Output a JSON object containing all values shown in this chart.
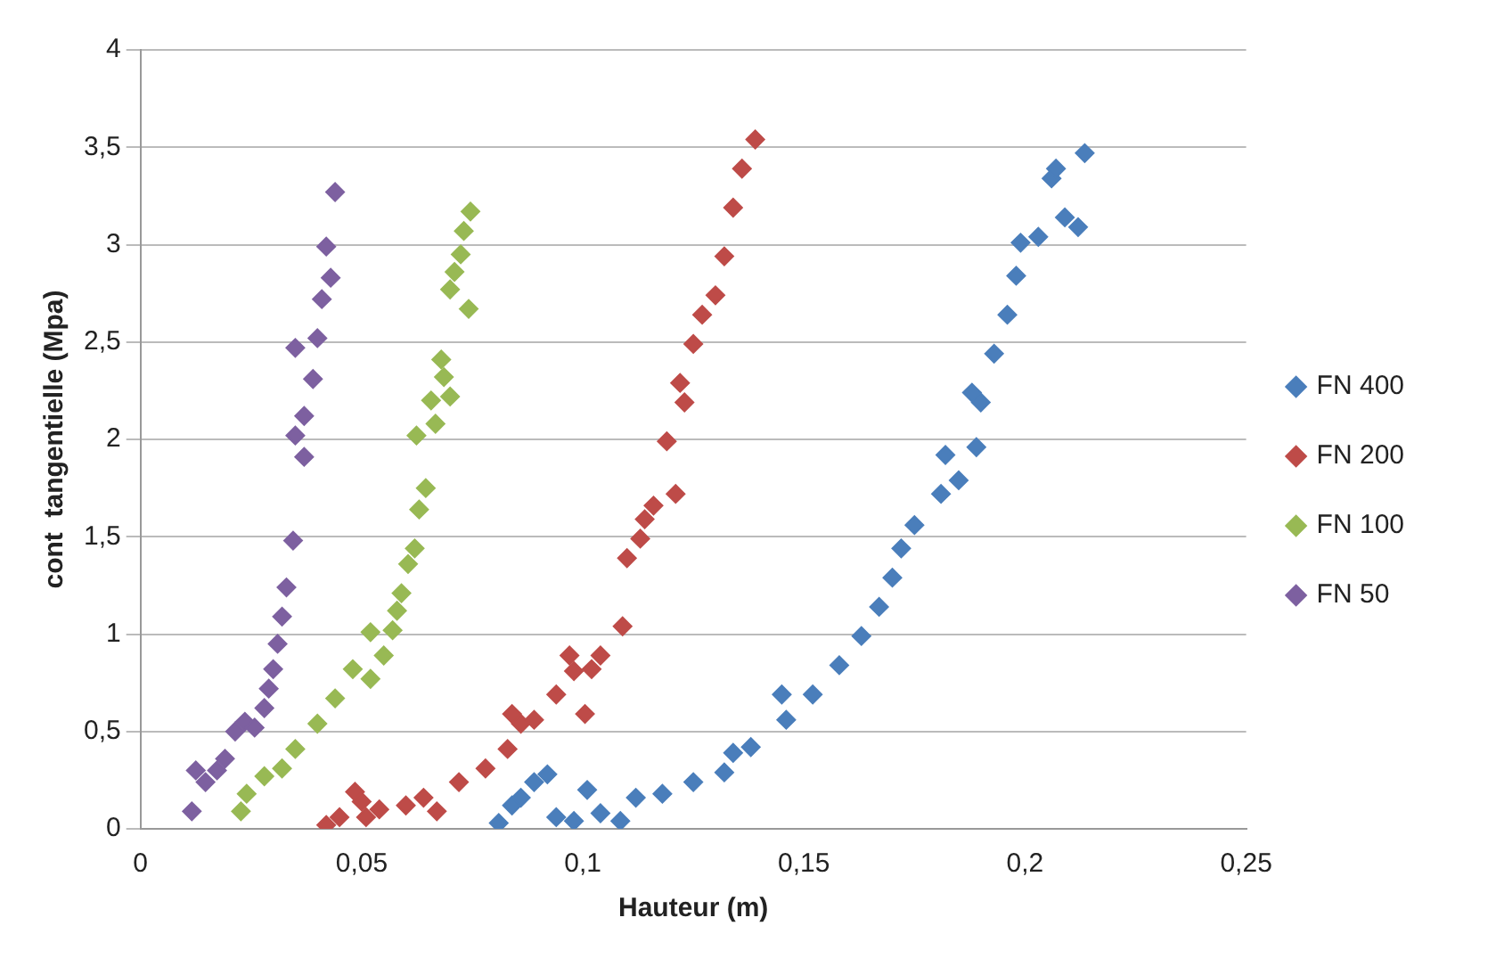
{
  "chart_data": {
    "type": "scatter",
    "xlabel": "Hauteur (m)",
    "ylabel": "cont  tangentielle (Mpa)",
    "xlim": [
      0,
      0.25
    ],
    "xticks": [
      {
        "value": 0,
        "label": "0"
      },
      {
        "value": 0.05,
        "label": "0,05"
      },
      {
        "value": 0.1,
        "label": "0,1"
      },
      {
        "value": 0.15,
        "label": "0,15"
      },
      {
        "value": 0.2,
        "label": "0,2"
      },
      {
        "value": 0.25,
        "label": "0,25"
      }
    ],
    "ylim": [
      0,
      4
    ],
    "yticks": [
      {
        "value": 0,
        "label": "0"
      },
      {
        "value": 0.5,
        "label": "0,5"
      },
      {
        "value": 1,
        "label": "1"
      },
      {
        "value": 1.5,
        "label": "1,5"
      },
      {
        "value": 2,
        "label": "2"
      },
      {
        "value": 2.5,
        "label": "2,5"
      },
      {
        "value": 3,
        "label": "3"
      },
      {
        "value": 3.5,
        "label": "3,5"
      },
      {
        "value": 4,
        "label": "4"
      }
    ],
    "grid": "y",
    "legend": "right",
    "marker": "diamond",
    "series": [
      {
        "name": "FN 400",
        "color": "#4a7ebb",
        "x": [
          0.081,
          0.084,
          0.086,
          0.089,
          0.092,
          0.094,
          0.098,
          0.101,
          0.104,
          0.1085,
          0.112,
          0.118,
          0.125,
          0.132,
          0.134,
          0.138,
          0.145,
          0.146,
          0.152,
          0.158,
          0.163,
          0.167,
          0.17,
          0.172,
          0.175,
          0.181,
          0.182,
          0.185,
          0.189,
          0.19,
          0.188,
          0.193,
          0.196,
          0.198,
          0.199,
          0.203,
          0.206,
          0.207,
          0.209,
          0.212,
          0.2135
        ],
        "values": [
          0.03,
          0.12,
          0.16,
          0.24,
          0.28,
          0.06,
          0.04,
          0.2,
          0.08,
          0.04,
          0.16,
          0.18,
          0.24,
          0.29,
          0.39,
          0.42,
          0.69,
          0.56,
          0.69,
          0.84,
          0.99,
          1.14,
          1.29,
          1.44,
          1.56,
          1.72,
          1.92,
          1.79,
          1.96,
          2.19,
          2.24,
          2.44,
          2.64,
          2.84,
          3.01,
          3.04,
          3.34,
          3.39,
          3.14,
          3.09,
          3.47
        ]
      },
      {
        "name": "FN 200",
        "color": "#be4b48",
        "x": [
          0.042,
          0.045,
          0.0485,
          0.05,
          0.051,
          0.054,
          0.06,
          0.064,
          0.067,
          0.072,
          0.078,
          0.083,
          0.084,
          0.086,
          0.089,
          0.094,
          0.097,
          0.098,
          0.1005,
          0.102,
          0.104,
          0.109,
          0.11,
          0.113,
          0.114,
          0.116,
          0.121,
          0.119,
          0.122,
          0.123,
          0.125,
          0.127,
          0.13,
          0.132,
          0.134,
          0.136,
          0.139
        ],
        "values": [
          0.02,
          0.06,
          0.19,
          0.14,
          0.06,
          0.1,
          0.12,
          0.16,
          0.09,
          0.24,
          0.31,
          0.41,
          0.59,
          0.54,
          0.56,
          0.69,
          0.89,
          0.81,
          0.59,
          0.82,
          0.89,
          1.04,
          1.39,
          1.49,
          1.59,
          1.66,
          1.72,
          1.99,
          2.29,
          2.19,
          2.49,
          2.64,
          2.74,
          2.94,
          3.19,
          3.39,
          3.54
        ]
      },
      {
        "name": "FN 100",
        "color": "#98b954",
        "x": [
          0.0227,
          0.024,
          0.028,
          0.032,
          0.035,
          0.04,
          0.044,
          0.048,
          0.052,
          0.052,
          0.055,
          0.057,
          0.058,
          0.059,
          0.0605,
          0.062,
          0.063,
          0.0645,
          0.0624,
          0.0667,
          0.0657,
          0.07,
          0.068,
          0.0686,
          0.07,
          0.071,
          0.0724,
          0.0731,
          0.0746,
          0.0742
        ],
        "values": [
          0.09,
          0.18,
          0.27,
          0.31,
          0.41,
          0.54,
          0.67,
          0.82,
          0.77,
          1.01,
          0.89,
          1.02,
          1.12,
          1.21,
          1.36,
          1.44,
          1.64,
          1.75,
          2.02,
          2.08,
          2.2,
          2.22,
          2.41,
          2.32,
          2.77,
          2.86,
          2.95,
          3.07,
          3.17,
          2.67
        ]
      },
      {
        "name": "FN 50",
        "color": "#7d60a0",
        "x": [
          0.0116,
          0.0125,
          0.0147,
          0.0173,
          0.0191,
          0.0214,
          0.0236,
          0.0258,
          0.028,
          0.029,
          0.03,
          0.031,
          0.032,
          0.033,
          0.0345,
          0.035,
          0.037,
          0.037,
          0.039,
          0.04,
          0.035,
          0.041,
          0.043,
          0.042,
          0.044
        ],
        "values": [
          0.09,
          0.3,
          0.24,
          0.3,
          0.36,
          0.5,
          0.55,
          0.52,
          0.62,
          0.72,
          0.82,
          0.95,
          1.09,
          1.24,
          1.48,
          2.02,
          2.12,
          1.91,
          2.31,
          2.52,
          2.47,
          2.72,
          2.83,
          2.99,
          3.27
        ]
      }
    ]
  }
}
